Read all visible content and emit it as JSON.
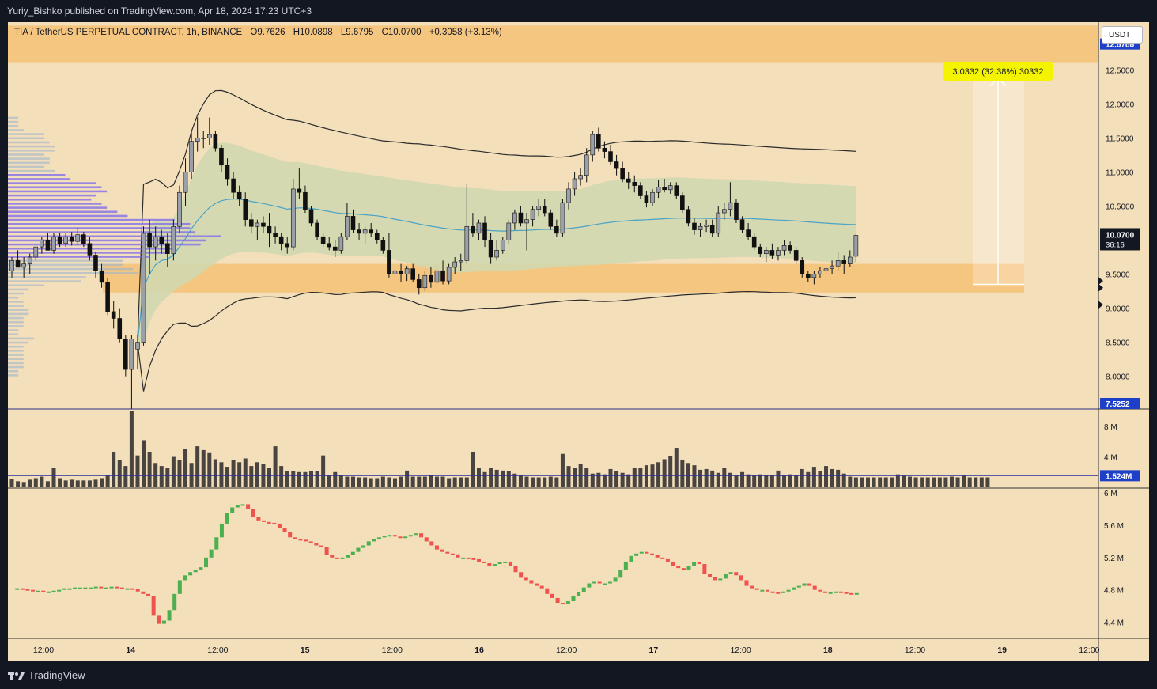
{
  "header": {
    "published": "Yuriy_Bishko published on TradingView.com, Apr 18, 2024 17:23 UTC+3"
  },
  "symbol_info": {
    "symbol": "TIA / TetherUS PERPETUAL CONTRACT, 1h, BINANCE",
    "open": "O9.7626",
    "high": "H10.0898",
    "low": "L9.6795",
    "close": "C10.0700",
    "change": "+0.3058 (+3.13%)"
  },
  "currency_button": "USDT",
  "measure_label": "3.0332 (32.38%) 30332",
  "price_badges": {
    "upper": "12.8788",
    "current": "10.0700",
    "countdown": "36:16",
    "lower": "7.5252",
    "volume": "1.524M"
  },
  "footer": {
    "brand": "TradingView"
  },
  "colors": {
    "background": "#f4dfbb",
    "zone": "#f5c37a",
    "value_area": "#cfd8b0",
    "vwap": "#4aa3c7",
    "profile": "#7b68ee",
    "up_bar": "#4caf50",
    "down_bar": "#ef5350",
    "badge": "#1e40c8",
    "measure": "#f4f400"
  },
  "chart_data": [
    {
      "type": "candlestick",
      "title": "TIA / TetherUS PERPETUAL CONTRACT, 1h, BINANCE",
      "x_ticks": [
        "12:00",
        "14",
        "12:00",
        "15",
        "12:00",
        "16",
        "12:00",
        "17",
        "12:00",
        "18",
        "12:00",
        "19",
        "12:00"
      ],
      "y_ticks": [
        "12.5000",
        "12.0000",
        "11.5000",
        "11.0000",
        "10.5000",
        "10.0000",
        "9.5000",
        "9.0000",
        "8.5000",
        "8.0000"
      ],
      "ylim": [
        7.52,
        13.2
      ],
      "candles_ohlc": [
        [
          9.55,
          9.75,
          9.45,
          9.7
        ],
        [
          9.7,
          9.85,
          9.6,
          9.6
        ],
        [
          9.6,
          9.75,
          9.45,
          9.65
        ],
        [
          9.65,
          9.8,
          9.5,
          9.75
        ],
        [
          9.75,
          9.9,
          9.7,
          9.9
        ],
        [
          9.9,
          10.05,
          9.8,
          10.0
        ],
        [
          10.0,
          10.1,
          9.9,
          9.85
        ],
        [
          9.85,
          10.1,
          9.8,
          10.05
        ],
        [
          10.05,
          10.1,
          9.9,
          9.95
        ],
        [
          9.95,
          10.1,
          9.9,
          10.05
        ],
        [
          10.05,
          10.12,
          9.92,
          9.98
        ],
        [
          9.98,
          10.18,
          9.92,
          10.08
        ],
        [
          10.08,
          10.12,
          9.9,
          9.95
        ],
        [
          9.95,
          10.05,
          9.7,
          9.78
        ],
        [
          9.78,
          9.82,
          9.45,
          9.55
        ],
        [
          9.55,
          9.65,
          9.3,
          9.38
        ],
        [
          9.38,
          9.45,
          8.9,
          8.95
        ],
        [
          8.95,
          9.1,
          8.7,
          8.85
        ],
        [
          8.85,
          9.0,
          8.5,
          8.55
        ],
        [
          8.55,
          8.6,
          8.0,
          8.1
        ],
        [
          8.1,
          8.6,
          7.52,
          8.55
        ],
        [
          8.4,
          8.6,
          8.1,
          8.5
        ],
        [
          8.5,
          10.2,
          8.45,
          10.1
        ],
        [
          10.1,
          10.3,
          9.5,
          9.9
        ],
        [
          9.9,
          10.2,
          9.7,
          10.05
        ],
        [
          10.05,
          10.15,
          9.8,
          9.95
        ],
        [
          9.95,
          10.1,
          9.6,
          9.8
        ],
        [
          9.8,
          10.3,
          9.7,
          10.2
        ],
        [
          10.2,
          10.8,
          10.1,
          10.7
        ],
        [
          10.7,
          11.2,
          10.5,
          11.0
        ],
        [
          11.0,
          11.6,
          10.9,
          11.45
        ],
        [
          11.45,
          11.8,
          11.3,
          11.5
        ],
        [
          11.5,
          11.6,
          11.35,
          11.5
        ],
        [
          11.5,
          11.8,
          11.4,
          11.55
        ],
        [
          11.55,
          11.6,
          11.3,
          11.35
        ],
        [
          11.35,
          11.4,
          11.0,
          11.1
        ],
        [
          11.1,
          11.2,
          10.8,
          10.9
        ],
        [
          10.9,
          11.0,
          10.6,
          10.7
        ],
        [
          10.7,
          10.8,
          10.5,
          10.6
        ],
        [
          10.6,
          10.7,
          10.2,
          10.3
        ],
        [
          10.3,
          10.4,
          10.1,
          10.2
        ],
        [
          10.2,
          10.3,
          10.0,
          10.25
        ],
        [
          10.25,
          10.35,
          10.1,
          10.2
        ],
        [
          10.2,
          10.4,
          9.9,
          10.1
        ],
        [
          10.1,
          10.2,
          9.95,
          10.05
        ],
        [
          10.05,
          10.1,
          9.85,
          9.95
        ],
        [
          9.95,
          10.05,
          9.8,
          9.9
        ],
        [
          9.9,
          10.9,
          9.85,
          10.75
        ],
        [
          10.75,
          11.05,
          10.6,
          10.7
        ],
        [
          10.7,
          10.8,
          10.4,
          10.45
        ],
        [
          10.45,
          10.5,
          10.2,
          10.25
        ],
        [
          10.25,
          10.3,
          10.0,
          10.05
        ],
        [
          10.05,
          10.1,
          9.9,
          9.95
        ],
        [
          9.95,
          10.05,
          9.85,
          9.9
        ],
        [
          9.9,
          10.0,
          9.75,
          9.85
        ],
        [
          9.85,
          10.1,
          9.8,
          10.05
        ],
        [
          10.05,
          10.55,
          10.0,
          10.35
        ],
        [
          10.35,
          10.45,
          10.1,
          10.15
        ],
        [
          10.15,
          10.25,
          10.0,
          10.1
        ],
        [
          10.1,
          10.2,
          9.95,
          10.15
        ],
        [
          10.15,
          10.25,
          10.05,
          10.1
        ],
        [
          10.1,
          10.15,
          9.95,
          10.0
        ],
        [
          10.0,
          10.05,
          9.8,
          9.85
        ],
        [
          9.85,
          10.1,
          9.45,
          9.5
        ],
        [
          9.5,
          9.62,
          9.35,
          9.55
        ],
        [
          9.55,
          9.65,
          9.38,
          9.5
        ],
        [
          9.5,
          9.62,
          9.4,
          9.58
        ],
        [
          9.58,
          9.65,
          9.38,
          9.42
        ],
        [
          9.42,
          9.5,
          9.2,
          9.3
        ],
        [
          9.3,
          9.55,
          9.25,
          9.48
        ],
        [
          9.48,
          9.6,
          9.3,
          9.38
        ],
        [
          9.38,
          9.65,
          9.3,
          9.55
        ],
        [
          9.55,
          9.7,
          9.35,
          9.4
        ],
        [
          9.4,
          9.65,
          9.35,
          9.6
        ],
        [
          9.6,
          9.75,
          9.5,
          9.68
        ],
        [
          9.68,
          9.8,
          9.55,
          9.7
        ],
        [
          9.7,
          10.83,
          9.65,
          10.2
        ],
        [
          10.2,
          10.4,
          10.05,
          10.1
        ],
        [
          10.1,
          10.3,
          10.0,
          10.25
        ],
        [
          10.25,
          10.35,
          9.9,
          10.0
        ],
        [
          10.0,
          10.1,
          9.65,
          9.75
        ],
        [
          9.75,
          10.0,
          9.7,
          9.85
        ],
        [
          9.85,
          10.05,
          9.8,
          10.0
        ],
        [
          10.0,
          10.3,
          9.95,
          10.25
        ],
        [
          10.25,
          10.45,
          10.15,
          10.4
        ],
        [
          10.4,
          10.5,
          10.2,
          10.25
        ],
        [
          10.25,
          10.4,
          9.85,
          10.3
        ],
        [
          10.3,
          10.5,
          10.2,
          10.45
        ],
        [
          10.45,
          10.6,
          10.35,
          10.5
        ],
        [
          10.5,
          10.6,
          10.35,
          10.4
        ],
        [
          10.4,
          10.45,
          10.15,
          10.2
        ],
        [
          10.2,
          10.3,
          10.05,
          10.1
        ],
        [
          10.1,
          10.6,
          10.05,
          10.55
        ],
        [
          10.55,
          10.85,
          10.45,
          10.75
        ],
        [
          10.75,
          11.0,
          10.65,
          10.9
        ],
        [
          10.9,
          11.05,
          10.8,
          10.95
        ],
        [
          10.95,
          11.35,
          10.85,
          11.25
        ],
        [
          11.25,
          11.6,
          11.15,
          11.55
        ],
        [
          11.55,
          11.65,
          11.3,
          11.35
        ],
        [
          11.35,
          11.45,
          11.2,
          11.3
        ],
        [
          11.3,
          11.4,
          11.1,
          11.15
        ],
        [
          11.15,
          11.25,
          10.95,
          11.05
        ],
        [
          11.05,
          11.15,
          10.85,
          10.9
        ],
        [
          10.9,
          11.0,
          10.75,
          10.85
        ],
        [
          10.85,
          10.95,
          10.7,
          10.8
        ],
        [
          10.8,
          10.85,
          10.6,
          10.65
        ],
        [
          10.65,
          10.72,
          10.48,
          10.55
        ],
        [
          10.55,
          10.75,
          10.5,
          10.7
        ],
        [
          10.7,
          10.88,
          10.62,
          10.78
        ],
        [
          10.78,
          10.9,
          10.7,
          10.74
        ],
        [
          10.74,
          10.85,
          10.68,
          10.8
        ],
        [
          10.8,
          10.85,
          10.6,
          10.65
        ],
        [
          10.65,
          10.7,
          10.4,
          10.45
        ],
        [
          10.45,
          10.5,
          10.2,
          10.25
        ],
        [
          10.25,
          10.32,
          10.08,
          10.15
        ],
        [
          10.15,
          10.25,
          10.05,
          10.2
        ],
        [
          10.2,
          10.3,
          10.12,
          10.22
        ],
        [
          10.22,
          10.3,
          10.05,
          10.1
        ],
        [
          10.1,
          10.5,
          10.05,
          10.4
        ],
        [
          10.4,
          10.55,
          10.3,
          10.45
        ],
        [
          10.45,
          10.85,
          10.35,
          10.55
        ],
        [
          10.55,
          10.6,
          10.25,
          10.3
        ],
        [
          10.3,
          10.35,
          10.1,
          10.15
        ],
        [
          10.15,
          10.25,
          10.0,
          10.05
        ],
        [
          10.05,
          10.1,
          9.85,
          9.9
        ],
        [
          9.9,
          9.95,
          9.75,
          9.8
        ],
        [
          9.8,
          9.9,
          9.68,
          9.85
        ],
        [
          9.85,
          9.95,
          9.72,
          9.78
        ],
        [
          9.78,
          9.9,
          9.7,
          9.85
        ],
        [
          9.85,
          10.0,
          9.78,
          9.92
        ],
        [
          9.92,
          9.98,
          9.8,
          9.85
        ],
        [
          9.85,
          9.9,
          9.65,
          9.7
        ],
        [
          9.7,
          9.75,
          9.45,
          9.5
        ],
        [
          9.5,
          9.55,
          9.38,
          9.45
        ],
        [
          9.45,
          9.55,
          9.35,
          9.5
        ],
        [
          9.5,
          9.6,
          9.45,
          9.55
        ],
        [
          9.55,
          9.62,
          9.48,
          9.58
        ],
        [
          9.58,
          9.7,
          9.5,
          9.62
        ],
        [
          9.62,
          9.82,
          9.55,
          9.7
        ],
        [
          9.7,
          9.78,
          9.5,
          9.65
        ],
        [
          9.65,
          9.85,
          9.6,
          9.75
        ],
        [
          9.7626,
          10.0898,
          9.6795,
          10.07
        ]
      ]
    },
    {
      "type": "bar",
      "name": "volume",
      "y_ticks": [
        "8 M",
        "4 M"
      ],
      "ylim": [
        0,
        10.2
      ],
      "last_value": "1.524M",
      "values": [
        1.1,
        0.8,
        0.7,
        1.0,
        1.2,
        1.4,
        0.8,
        2.6,
        1.2,
        0.9,
        1.0,
        0.9,
        0.9,
        0.9,
        1.0,
        1.2,
        1.5,
        4.6,
        3.6,
        2.8,
        10.0,
        4.2,
        6.2,
        4.6,
        3.2,
        2.8,
        2.5,
        4.0,
        3.6,
        5.1,
        3.2,
        5.4,
        4.9,
        4.5,
        3.7,
        3.3,
        2.7,
        3.6,
        3.3,
        3.8,
        2.8,
        3.3,
        3.1,
        2.5,
        5.4,
        2.8,
        2.1,
        2.1,
        2.0,
        2.0,
        2.1,
        2.1,
        4.2,
        1.5,
        2.0,
        1.5,
        1.4,
        1.4,
        1.3,
        1.3,
        1.2,
        1.2,
        1.4,
        1.3,
        1.2,
        1.4,
        2.2,
        1.4,
        1.4,
        1.4,
        1.6,
        1.4,
        1.4,
        1.2,
        1.3,
        1.3,
        1.3,
        4.6,
        2.6,
        2.0,
        2.5,
        2.3,
        2.2,
        2.1,
        1.8,
        1.6,
        1.4,
        1.3,
        1.3,
        1.3,
        1.4,
        1.3,
        4.4,
        2.8,
        2.6,
        3.1,
        2.5,
        1.8,
        1.9,
        1.7,
        2.4,
        2.1,
        1.9,
        1.7,
        2.6,
        2.6,
        2.9,
        3.0,
        3.3,
        3.7,
        4.1,
        5.2,
        3.6,
        3.2,
        2.9,
        2.3,
        2.4,
        2.2,
        1.9,
        2.6,
        1.9,
        1.5,
        2.0,
        1.7,
        1.6,
        1.7,
        1.6,
        1.6,
        2.2,
        1.6,
        1.7,
        1.6,
        2.4,
        2.0,
        2.7,
        2.1,
        2.8,
        2.4,
        2.3,
        1.8,
        1.4,
        1.3,
        1.3,
        1.3,
        1.3,
        1.3,
        1.3,
        1.3,
        1.7,
        1.5,
        1.4,
        1.3,
        1.3,
        1.3,
        1.3,
        1.3,
        1.3,
        1.4,
        1.3,
        1.5,
        1.3,
        1.3,
        1.3,
        1.3
      ]
    },
    {
      "type": "line",
      "name": "on-balance volume",
      "y_ticks": [
        "6 M",
        "5.6 M",
        "5.2 M",
        "4.8 M",
        "4.4 M"
      ],
      "ylim": [
        4.2,
        6.05
      ],
      "values": [
        4.82,
        4.82,
        4.81,
        4.8,
        4.79,
        4.79,
        4.78,
        4.78,
        4.79,
        4.8,
        4.82,
        4.82,
        4.83,
        4.83,
        4.83,
        4.83,
        4.84,
        4.83,
        4.83,
        4.84,
        4.83,
        4.82,
        4.82,
        4.81,
        4.78,
        4.75,
        4.72,
        4.48,
        4.38,
        4.42,
        4.55,
        4.75,
        4.92,
        4.98,
        5.02,
        5.05,
        5.08,
        5.2,
        5.3,
        5.45,
        5.62,
        5.75,
        5.82,
        5.85,
        5.86,
        5.8,
        5.7,
        5.66,
        5.64,
        5.63,
        5.62,
        5.57,
        5.52,
        5.45,
        5.43,
        5.42,
        5.4,
        5.38,
        5.35,
        5.33,
        5.23,
        5.2,
        5.18,
        5.2,
        5.23,
        5.27,
        5.32,
        5.35,
        5.4,
        5.43,
        5.45,
        5.47,
        5.48,
        5.46,
        5.45,
        5.46,
        5.48,
        5.5,
        5.45,
        5.4,
        5.35,
        5.3,
        5.27,
        5.25,
        5.24,
        5.2,
        5.2,
        5.19,
        5.18,
        5.15,
        5.13,
        5.1,
        5.12,
        5.14,
        5.15,
        5.1,
        5.02,
        4.95,
        4.92,
        4.88,
        4.85,
        4.82,
        4.75,
        4.7,
        4.64,
        4.63,
        4.66,
        4.72,
        4.77,
        4.83,
        4.88,
        4.9,
        4.88,
        4.88,
        4.9,
        4.95,
        5.05,
        5.15,
        5.22,
        5.25,
        5.27,
        5.25,
        5.23,
        5.2,
        5.18,
        5.15,
        5.1,
        5.07,
        5.05,
        5.1,
        5.14,
        5.12,
        5.0,
        4.96,
        4.92,
        4.94,
        5.0,
        5.02,
        4.98,
        4.92,
        4.85,
        4.82,
        4.8,
        4.8,
        4.78,
        4.77,
        4.76,
        4.78,
        4.8,
        4.83,
        4.85,
        4.88,
        4.85,
        4.8,
        4.78,
        4.77,
        4.77,
        4.78,
        4.77,
        4.76,
        4.75,
        4.76
      ]
    }
  ]
}
